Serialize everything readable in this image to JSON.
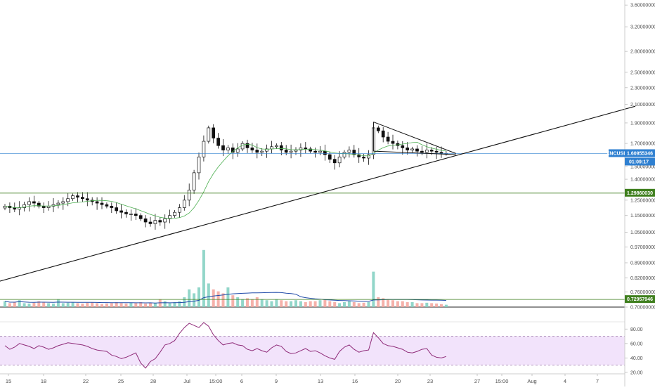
{
  "chart_data": {
    "type": "candlestick",
    "symbol_label": "XNCUSD",
    "price_axis": {
      "scale": "log",
      "ticks": [
        "3.60000000",
        "3.20000000",
        "2.80000000",
        "2.50000000",
        "2.30000000",
        "2.10000000",
        "1.90000000",
        "1.70000000",
        "1.50000000",
        "1.40000000",
        "1.25000000",
        "1.15000000",
        "1.05000000",
        "0.97000000",
        "0.89000000",
        "0.82000000",
        "0.76000000",
        "0.70000000"
      ],
      "range": [
        0.7,
        3.7
      ]
    },
    "rsi_axis": {
      "ticks": [
        "80.00",
        "60.00",
        "40.00",
        "20.00"
      ],
      "range": [
        18,
        90
      ],
      "upper_band": 70,
      "lower_band": 30
    },
    "time_axis": {
      "ticks": [
        "15",
        "18",
        "22",
        "25",
        "28",
        "Jul",
        "15:00",
        "6",
        "9",
        "13",
        "16",
        "20",
        "23",
        "27",
        "15:00",
        "Aug",
        "4",
        "7"
      ]
    },
    "markers": {
      "current_price": {
        "label": "1.60955346",
        "countdown": "01:09:17",
        "value": 1.6096,
        "color": "#2f80d1"
      },
      "support_level": {
        "label": "1.29860030",
        "value": 1.2986,
        "color": "#3f7f1e"
      },
      "volume_level": {
        "label": "0.72957946",
        "value": 0.7296,
        "color": "#3f7f1e"
      }
    },
    "trendline": {
      "from": {
        "bar": -2,
        "price": 0.8
      },
      "to": {
        "bar": 130,
        "price": 2.08
      }
    },
    "triangle": {
      "upper": [
        {
          "bar": 76,
          "price": 1.91
        },
        {
          "bar": 92,
          "price": 1.61
        }
      ],
      "lower": [
        {
          "bar": 76,
          "price": 1.63
        },
        {
          "bar": 92,
          "price": 1.6
        }
      ],
      "apex_bar": 93
    },
    "closes": [
      1.21,
      1.2,
      1.19,
      1.2,
      1.22,
      1.24,
      1.23,
      1.21,
      1.2,
      1.21,
      1.22,
      1.23,
      1.24,
      1.26,
      1.28,
      1.27,
      1.26,
      1.25,
      1.24,
      1.23,
      1.22,
      1.21,
      1.2,
      1.18,
      1.17,
      1.16,
      1.16,
      1.15,
      1.13,
      1.11,
      1.1,
      1.12,
      1.11,
      1.13,
      1.15,
      1.17,
      1.2,
      1.25,
      1.32,
      1.45,
      1.58,
      1.72,
      1.85,
      1.75,
      1.68,
      1.64,
      1.66,
      1.62,
      1.65,
      1.7,
      1.66,
      1.64,
      1.62,
      1.63,
      1.65,
      1.67,
      1.68,
      1.64,
      1.62,
      1.63,
      1.64,
      1.66,
      1.65,
      1.63,
      1.62,
      1.63,
      1.6,
      1.56,
      1.53,
      1.58,
      1.62,
      1.64,
      1.6,
      1.58,
      1.57,
      1.6,
      1.85,
      1.82,
      1.76,
      1.72,
      1.7,
      1.68,
      1.66,
      1.64,
      1.65,
      1.63,
      1.62,
      1.64,
      1.63,
      1.62,
      1.61,
      1.61
    ],
    "volumes": [
      0.3,
      0.2,
      0.25,
      0.35,
      0.2,
      0.18,
      0.22,
      0.3,
      0.25,
      0.2,
      0.18,
      0.4,
      0.2,
      0.22,
      0.25,
      0.2,
      0.18,
      0.22,
      0.25,
      0.2,
      0.15,
      0.18,
      0.2,
      0.25,
      0.2,
      0.18,
      0.22,
      0.2,
      0.25,
      0.18,
      0.2,
      0.22,
      0.4,
      0.3,
      0.2,
      0.25,
      0.3,
      0.5,
      0.9,
      0.7,
      1.0,
      2.9,
      1.2,
      0.9,
      0.8,
      0.7,
      1.0,
      0.6,
      0.5,
      0.4,
      0.45,
      0.4,
      0.5,
      0.4,
      0.35,
      0.3,
      0.4,
      0.35,
      0.3,
      0.3,
      0.35,
      0.3,
      0.25,
      0.3,
      0.3,
      0.35,
      0.4,
      0.3,
      0.25,
      0.2,
      0.25,
      0.3,
      0.25,
      0.2,
      0.22,
      0.25,
      1.8,
      0.5,
      0.45,
      0.4,
      0.35,
      0.3,
      0.3,
      0.25,
      0.25,
      0.2,
      0.2,
      0.22,
      0.2,
      0.18,
      0.15,
      0.12
    ],
    "rsi": [
      57,
      52,
      55,
      60,
      58,
      56,
      53,
      57,
      55,
      52,
      54,
      57,
      59,
      61,
      60,
      59,
      58,
      56,
      53,
      51,
      50,
      49,
      44,
      42,
      39,
      41,
      44,
      47,
      33,
      26,
      35,
      39,
      48,
      58,
      60,
      64,
      74,
      82,
      88,
      85,
      82,
      89,
      84,
      72,
      64,
      58,
      60,
      61,
      58,
      57,
      52,
      50,
      53,
      50,
      48,
      54,
      58,
      56,
      49,
      46,
      47,
      50,
      53,
      49,
      50,
      47,
      43,
      40,
      38,
      49,
      55,
      58,
      52,
      48,
      50,
      51,
      75,
      68,
      60,
      57,
      56,
      54,
      52,
      48,
      47,
      49,
      52,
      53,
      44,
      41,
      40,
      42
    ]
  }
}
